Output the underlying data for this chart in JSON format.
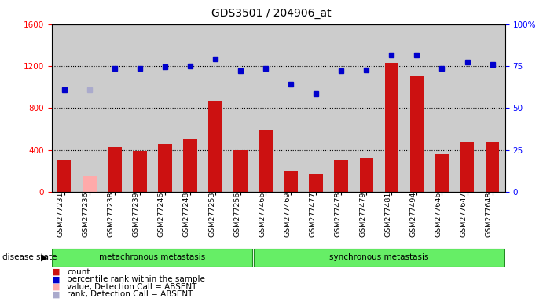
{
  "title": "GDS3501 / 204906_at",
  "samples": [
    "GSM277231",
    "GSM277236",
    "GSM277238",
    "GSM277239",
    "GSM277246",
    "GSM277248",
    "GSM277253",
    "GSM277256",
    "GSM277466",
    "GSM277469",
    "GSM277477",
    "GSM277478",
    "GSM277479",
    "GSM277481",
    "GSM277494",
    "GSM277646",
    "GSM277647",
    "GSM277648"
  ],
  "bar_values": [
    310,
    150,
    430,
    390,
    460,
    500,
    860,
    400,
    590,
    200,
    170,
    310,
    320,
    1230,
    1100,
    360,
    470,
    480
  ],
  "bar_absent": [
    false,
    true,
    false,
    false,
    false,
    false,
    false,
    false,
    false,
    false,
    false,
    false,
    false,
    false,
    false,
    false,
    false,
    false
  ],
  "dot_values": [
    975,
    975,
    1180,
    1180,
    1195,
    1200,
    1270,
    1155,
    1180,
    1030,
    940,
    1155,
    1165,
    1305,
    1305,
    1175,
    1235,
    1215
  ],
  "dot_absent": [
    false,
    true,
    false,
    false,
    false,
    false,
    false,
    false,
    false,
    false,
    false,
    false,
    false,
    false,
    false,
    false,
    false,
    false
  ],
  "group1_label": "metachronous metastasis",
  "group2_label": "synchronous metastasis",
  "group1_count": 8,
  "group2_count": 10,
  "ylim_left": [
    0,
    1600
  ],
  "ylim_right": [
    0,
    100
  ],
  "yticks_left": [
    0,
    400,
    800,
    1200,
    1600
  ],
  "yticks_right": [
    0,
    25,
    50,
    75,
    100
  ],
  "bar_color": "#cc1111",
  "bar_absent_color": "#ffaaaa",
  "dot_color": "#0000cc",
  "dot_absent_color": "#aaaacc",
  "col_bg_color": "#cccccc",
  "group_bg_color": "#66ee66",
  "group_border_color": "#228822",
  "legend_items": [
    {
      "label": "count",
      "color": "#cc1111"
    },
    {
      "label": "percentile rank within the sample",
      "color": "#0000cc"
    },
    {
      "label": "value, Detection Call = ABSENT",
      "color": "#ffaaaa"
    },
    {
      "label": "rank, Detection Call = ABSENT",
      "color": "#aaaacc"
    }
  ],
  "disease_state_label": "disease state"
}
